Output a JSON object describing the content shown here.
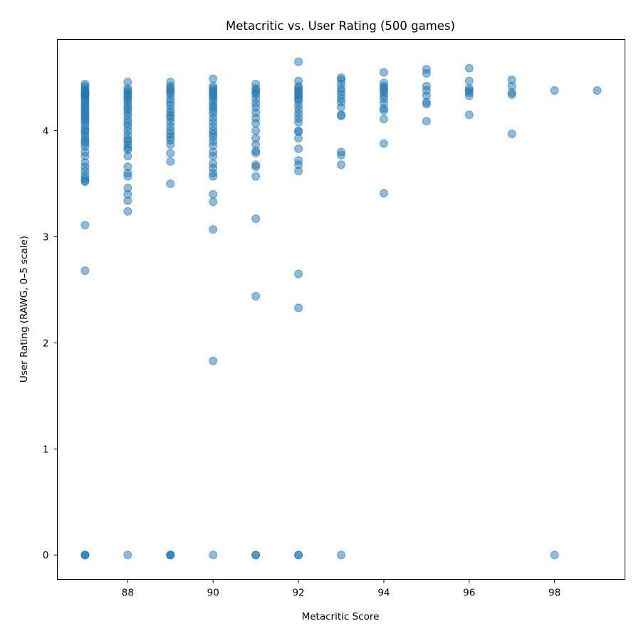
{
  "chart_data": {
    "type": "scatter",
    "title": "Metacritic vs. User Rating (500 games)",
    "xlabel": "Metacritic Score",
    "ylabel": "User Rating (RAWG, 0–5 scale)",
    "xlim": [
      86.35,
      99.65
    ],
    "ylim": [
      -0.23,
      4.86
    ],
    "xticks": [
      88,
      90,
      92,
      94,
      96,
      98
    ],
    "yticks": [
      0,
      1,
      2,
      3,
      4
    ],
    "grid": false,
    "legend": "none",
    "series": [
      {
        "color": "#1f77b4",
        "points": [
          [
            87,
            4.44
          ],
          [
            87,
            4.42
          ],
          [
            87,
            4.4
          ],
          [
            87,
            4.38
          ],
          [
            87,
            4.37
          ],
          [
            87,
            4.36
          ],
          [
            87,
            4.35
          ],
          [
            87,
            4.34
          ],
          [
            87,
            4.33
          ],
          [
            87,
            4.32
          ],
          [
            87,
            4.3
          ],
          [
            87,
            4.28
          ],
          [
            87,
            4.26
          ],
          [
            87,
            4.24
          ],
          [
            87,
            4.22
          ],
          [
            87,
            4.2
          ],
          [
            87,
            4.18
          ],
          [
            87,
            4.16
          ],
          [
            87,
            4.14
          ],
          [
            87,
            4.12
          ],
          [
            87,
            4.1
          ],
          [
            87,
            4.08
          ],
          [
            87,
            4.05
          ],
          [
            87,
            4.02
          ],
          [
            87,
            4.0
          ],
          [
            87,
            3.98
          ],
          [
            87,
            3.95
          ],
          [
            87,
            3.92
          ],
          [
            87,
            3.9
          ],
          [
            87,
            3.88
          ],
          [
            87,
            3.85
          ],
          [
            87,
            3.8
          ],
          [
            87,
            3.76
          ],
          [
            87,
            3.7
          ],
          [
            87,
            3.66
          ],
          [
            87,
            3.62
          ],
          [
            87,
            3.58
          ],
          [
            87,
            3.55
          ],
          [
            87,
            3.53
          ],
          [
            87,
            3.52
          ],
          [
            87,
            3.11
          ],
          [
            87,
            2.68
          ],
          [
            87,
            0
          ],
          [
            87,
            0
          ],
          [
            87,
            0
          ],
          [
            88,
            4.46
          ],
          [
            88,
            4.4
          ],
          [
            88,
            4.38
          ],
          [
            88,
            4.36
          ],
          [
            88,
            4.34
          ],
          [
            88,
            4.32
          ],
          [
            88,
            4.3
          ],
          [
            88,
            4.28
          ],
          [
            88,
            4.25
          ],
          [
            88,
            4.22
          ],
          [
            88,
            4.2
          ],
          [
            88,
            4.17
          ],
          [
            88,
            4.14
          ],
          [
            88,
            4.1
          ],
          [
            88,
            4.07
          ],
          [
            88,
            4.04
          ],
          [
            88,
            4.0
          ],
          [
            88,
            3.96
          ],
          [
            88,
            3.92
          ],
          [
            88,
            3.9
          ],
          [
            88,
            3.87
          ],
          [
            88,
            3.84
          ],
          [
            88,
            3.82
          ],
          [
            88,
            3.76
          ],
          [
            88,
            3.66
          ],
          [
            88,
            3.6
          ],
          [
            88,
            3.57
          ],
          [
            88,
            3.46
          ],
          [
            88,
            3.4
          ],
          [
            88,
            3.34
          ],
          [
            88,
            3.24
          ],
          [
            88,
            0
          ],
          [
            89,
            4.46
          ],
          [
            89,
            4.42
          ],
          [
            89,
            4.4
          ],
          [
            89,
            4.38
          ],
          [
            89,
            4.36
          ],
          [
            89,
            4.34
          ],
          [
            89,
            4.3
          ],
          [
            89,
            4.27
          ],
          [
            89,
            4.24
          ],
          [
            89,
            4.2
          ],
          [
            89,
            4.17
          ],
          [
            89,
            4.14
          ],
          [
            89,
            4.12
          ],
          [
            89,
            4.08
          ],
          [
            89,
            4.04
          ],
          [
            89,
            4.0
          ],
          [
            89,
            3.97
          ],
          [
            89,
            3.94
          ],
          [
            89,
            3.91
          ],
          [
            89,
            3.87
          ],
          [
            89,
            3.79
          ],
          [
            89,
            3.71
          ],
          [
            89,
            3.5
          ],
          [
            89,
            0
          ],
          [
            89,
            0
          ],
          [
            89,
            0
          ],
          [
            90,
            4.49
          ],
          [
            90,
            4.42
          ],
          [
            90,
            4.4
          ],
          [
            90,
            4.38
          ],
          [
            90,
            4.36
          ],
          [
            90,
            4.34
          ],
          [
            90,
            4.32
          ],
          [
            90,
            4.3
          ],
          [
            90,
            4.27
          ],
          [
            90,
            4.24
          ],
          [
            90,
            4.22
          ],
          [
            90,
            4.19
          ],
          [
            90,
            4.16
          ],
          [
            90,
            4.12
          ],
          [
            90,
            4.08
          ],
          [
            90,
            4.04
          ],
          [
            90,
            4.0
          ],
          [
            90,
            3.97
          ],
          [
            90,
            3.94
          ],
          [
            90,
            3.9
          ],
          [
            90,
            3.86
          ],
          [
            90,
            3.8
          ],
          [
            90,
            3.76
          ],
          [
            90,
            3.69
          ],
          [
            90,
            3.65
          ],
          [
            90,
            3.6
          ],
          [
            90,
            3.57
          ],
          [
            90,
            3.4
          ],
          [
            90,
            3.33
          ],
          [
            90,
            3.07
          ],
          [
            90,
            1.83
          ],
          [
            90,
            0
          ],
          [
            91,
            4.44
          ],
          [
            91,
            4.4
          ],
          [
            91,
            4.38
          ],
          [
            91,
            4.36
          ],
          [
            91,
            4.34
          ],
          [
            91,
            4.3
          ],
          [
            91,
            4.26
          ],
          [
            91,
            4.22
          ],
          [
            91,
            4.17
          ],
          [
            91,
            4.12
          ],
          [
            91,
            4.07
          ],
          [
            91,
            4.0
          ],
          [
            91,
            3.93
          ],
          [
            91,
            3.87
          ],
          [
            91,
            3.81
          ],
          [
            91,
            3.79
          ],
          [
            91,
            3.68
          ],
          [
            91,
            3.66
          ],
          [
            91,
            3.57
          ],
          [
            91,
            3.17
          ],
          [
            91,
            2.44
          ],
          [
            91,
            0
          ],
          [
            91,
            0
          ],
          [
            92,
            4.65
          ],
          [
            92,
            4.47
          ],
          [
            92,
            4.42
          ],
          [
            92,
            4.4
          ],
          [
            92,
            4.38
          ],
          [
            92,
            4.36
          ],
          [
            92,
            4.34
          ],
          [
            92,
            4.32
          ],
          [
            92,
            4.3
          ],
          [
            92,
            4.28
          ],
          [
            92,
            4.24
          ],
          [
            92,
            4.2
          ],
          [
            92,
            4.16
          ],
          [
            92,
            4.12
          ],
          [
            92,
            4.08
          ],
          [
            92,
            4.0
          ],
          [
            92,
            3.99
          ],
          [
            92,
            3.93
          ],
          [
            92,
            3.83
          ],
          [
            92,
            3.72
          ],
          [
            92,
            3.68
          ],
          [
            92,
            3.62
          ],
          [
            92,
            2.65
          ],
          [
            92,
            2.33
          ],
          [
            92,
            0
          ],
          [
            92,
            0
          ],
          [
            93,
            4.5
          ],
          [
            93,
            4.48
          ],
          [
            93,
            4.44
          ],
          [
            93,
            4.4
          ],
          [
            93,
            4.37
          ],
          [
            93,
            4.34
          ],
          [
            93,
            4.3
          ],
          [
            93,
            4.27
          ],
          [
            93,
            4.22
          ],
          [
            93,
            4.15
          ],
          [
            93,
            4.14
          ],
          [
            93,
            3.8
          ],
          [
            93,
            3.77
          ],
          [
            93,
            3.68
          ],
          [
            93,
            0
          ],
          [
            94,
            4.55
          ],
          [
            94,
            4.45
          ],
          [
            94,
            4.42
          ],
          [
            94,
            4.4
          ],
          [
            94,
            4.38
          ],
          [
            94,
            4.36
          ],
          [
            94,
            4.33
          ],
          [
            94,
            4.3
          ],
          [
            94,
            4.26
          ],
          [
            94,
            4.21
          ],
          [
            94,
            4.19
          ],
          [
            94,
            4.11
          ],
          [
            94,
            3.88
          ],
          [
            94,
            3.41
          ],
          [
            95,
            4.58
          ],
          [
            95,
            4.54
          ],
          [
            95,
            4.42
          ],
          [
            95,
            4.38
          ],
          [
            95,
            4.33
          ],
          [
            95,
            4.27
          ],
          [
            95,
            4.25
          ],
          [
            95,
            4.09
          ],
          [
            96,
            4.59
          ],
          [
            96,
            4.47
          ],
          [
            96,
            4.4
          ],
          [
            96,
            4.38
          ],
          [
            96,
            4.36
          ],
          [
            96,
            4.33
          ],
          [
            96,
            4.15
          ],
          [
            97,
            4.48
          ],
          [
            97,
            4.42
          ],
          [
            97,
            4.36
          ],
          [
            97,
            4.34
          ],
          [
            97,
            3.97
          ],
          [
            98,
            4.38
          ],
          [
            98,
            0
          ],
          [
            99,
            4.38
          ]
        ]
      }
    ]
  }
}
